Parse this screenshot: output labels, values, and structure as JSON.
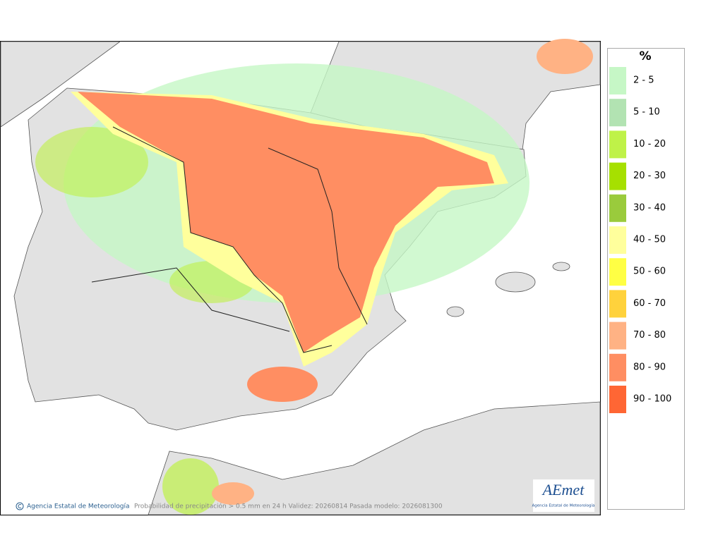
{
  "legend": {
    "title": "%",
    "items": [
      {
        "label": "2 - 5",
        "color": "#c6f7c6"
      },
      {
        "label": "5 - 10",
        "color": "#b2e3b2"
      },
      {
        "label": "10 - 20",
        "color": "#bff248"
      },
      {
        "label": "20 - 30",
        "color": "#a6e000"
      },
      {
        "label": "30 - 40",
        "color": "#9acb3c"
      },
      {
        "label": "40 - 50",
        "color": "#ffff9c"
      },
      {
        "label": "50 - 60",
        "color": "#ffff44"
      },
      {
        "label": "60 - 70",
        "color": "#ffd23c"
      },
      {
        "label": "70 - 80",
        "color": "#ffb284"
      },
      {
        "label": "80 - 90",
        "color": "#ff8e62"
      },
      {
        "label": "90 - 100",
        "color": "#ff6634"
      }
    ]
  },
  "footer": {
    "credit": "Agencia Estatal de Meteorología",
    "caption": "Probabilidad de precipitación > 0.5 mm en 24 h Validez: 20260814 Pasada modelo: 2026081300"
  },
  "logo": {
    "text": "AEmet",
    "subtitle": "Agencia Estatal de Meteorología"
  }
}
